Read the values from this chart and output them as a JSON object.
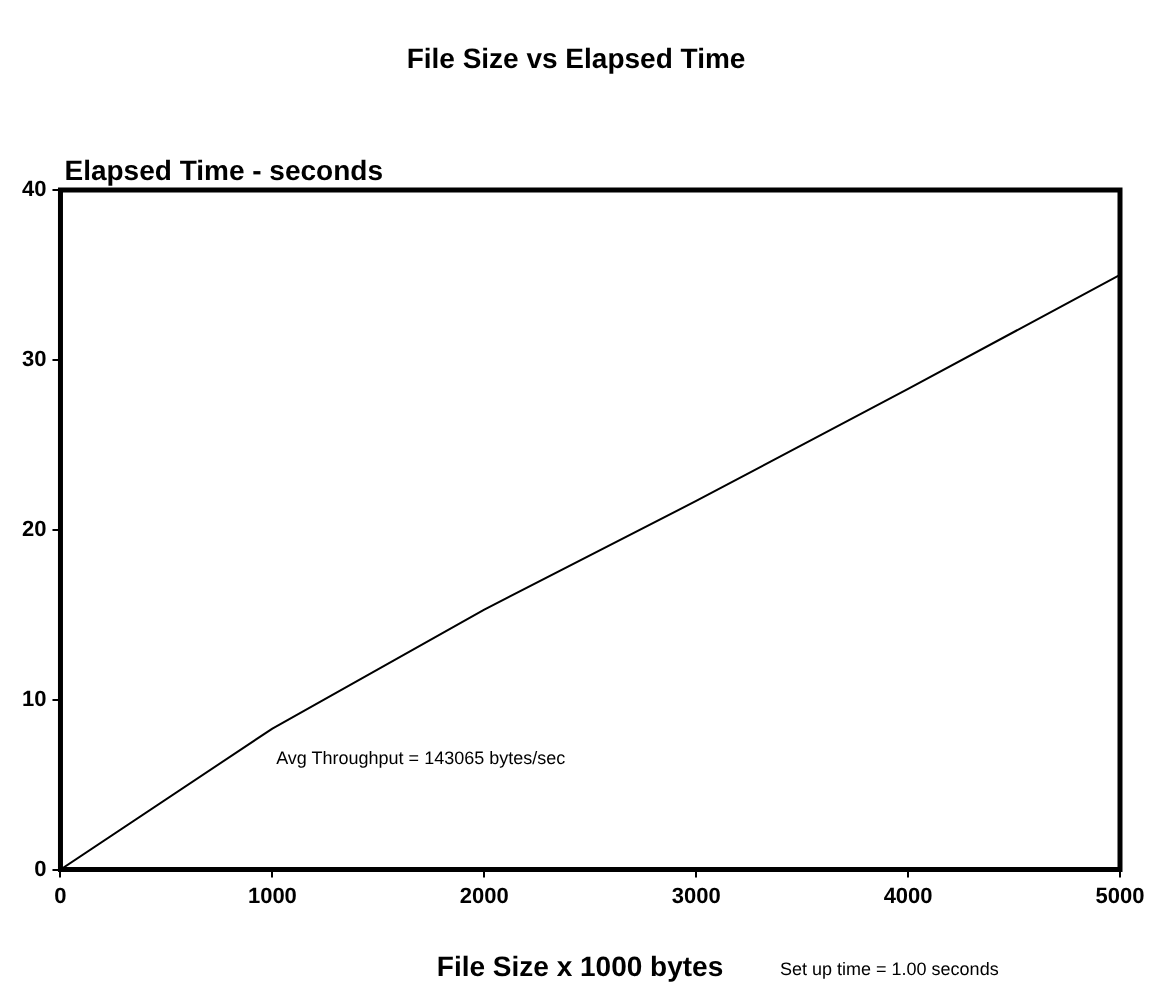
{
  "chart_data": {
    "type": "line",
    "title": "File Size vs Elapsed Time",
    "xlabel": "File Size x 1000 bytes",
    "ylabel": "Elapsed Time - seconds",
    "x": [
      0,
      1000,
      2000,
      3000,
      4000,
      5000
    ],
    "series": [
      {
        "color": "#000000",
        "values": [
          0,
          8.3,
          15.3,
          21.7,
          28.3,
          35
        ]
      }
    ],
    "xlim": [
      0,
      5000
    ],
    "xticks": [
      0,
      1000,
      2000,
      3000,
      4000,
      5000
    ],
    "ylim": [
      0,
      40
    ],
    "yticks": [
      0,
      10,
      20,
      30,
      40
    ],
    "grid": false,
    "legend": false,
    "marker": "none",
    "line_style": "solid",
    "annotations": [
      "Avg Throughput = 143065 bytes/sec",
      "Set up time = 1.00 seconds"
    ]
  }
}
